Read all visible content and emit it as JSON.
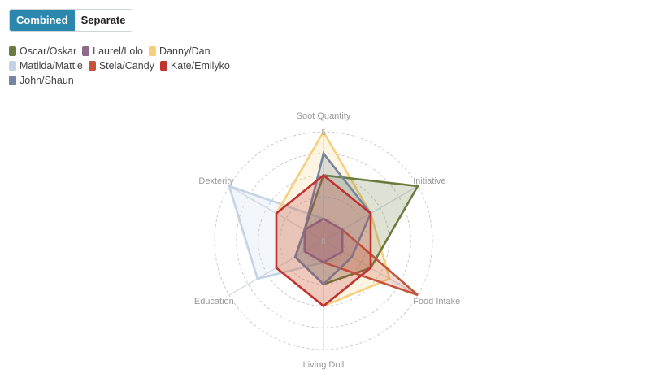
{
  "toggle": {
    "combined_label": "Combined",
    "separate_label": "Separate",
    "active": "Combined"
  },
  "chart_data": {
    "type": "radar",
    "axes": [
      "Soot Quantity",
      "Initiative",
      "Food Intake",
      "Living Doll",
      "Education",
      "Dexterity"
    ],
    "rlim": [
      0,
      5
    ],
    "ticks": [
      {
        "value": 0,
        "label": "0"
      },
      {
        "value": 1,
        "label": "1"
      },
      {
        "value": 2,
        "label": "2"
      },
      {
        "value": 3,
        "label": ""
      },
      {
        "value": 4,
        "label": ""
      },
      {
        "value": 5,
        "label": "5"
      }
    ],
    "grid": true,
    "legend_position": "top-left",
    "series": [
      {
        "name": "Oscar/Oskar",
        "color": "#6b7b3f",
        "values": [
          3,
          5,
          2.5,
          2,
          1.5,
          1
        ]
      },
      {
        "name": "Laurel/Lolo",
        "color": "#8c6a8a",
        "values": [
          1,
          1,
          1,
          1,
          1,
          1
        ]
      },
      {
        "name": "Danny/Dan",
        "color": "#f5cf7c",
        "values": [
          5,
          2.5,
          3.5,
          3,
          2.5,
          2.5
        ]
      },
      {
        "name": "Matilda/Mattie",
        "color": "#c3d3e6",
        "values": [
          1,
          1,
          1,
          1,
          3.5,
          5
        ]
      },
      {
        "name": "Stela/Candy",
        "color": "#c4533a",
        "values": [
          1,
          1,
          5,
          1,
          1,
          1
        ]
      },
      {
        "name": "Kate/Emilyko",
        "color": "#c13231",
        "values": [
          3,
          2.5,
          2.5,
          3,
          2.5,
          2.5
        ]
      },
      {
        "name": "John/Shaun",
        "color": "#7385a0",
        "values": [
          4,
          2.5,
          1.5,
          2,
          1.5,
          1
        ]
      }
    ]
  }
}
